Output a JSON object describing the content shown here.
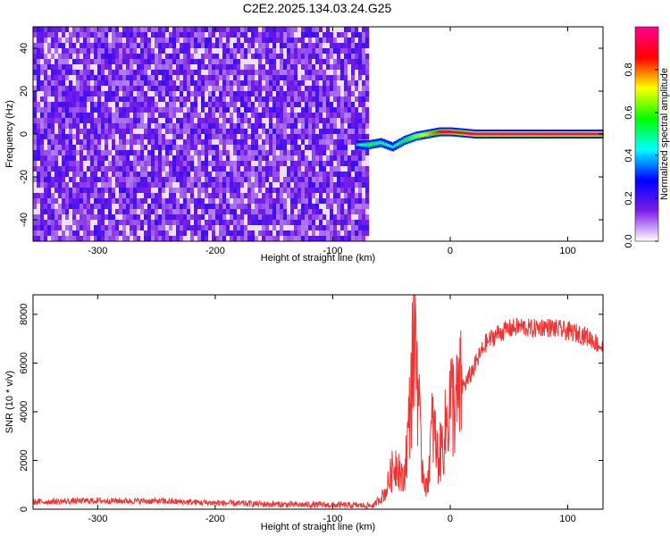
{
  "title": "C2E2.2025.134.03.24.G25",
  "chart_data": [
    {
      "type": "heatmap",
      "xlabel": "Height of straight line (km)",
      "ylabel": "Frequency (Hz)",
      "xlim": [
        -355,
        130
      ],
      "ylim": [
        -50,
        50
      ],
      "xticks": [
        -300,
        -200,
        -100,
        0,
        100
      ],
      "yticks": [
        -40,
        -20,
        0,
        20,
        40
      ],
      "colorbar": {
        "label": "Normalized spectral amplitude",
        "range": [
          0,
          1
        ],
        "ticks": [
          0.0,
          0.2,
          0.4,
          0.6,
          0.8
        ],
        "colors": [
          "#ffffff",
          "#7a1ee6",
          "#0000ff",
          "#00ffff",
          "#00ff00",
          "#ffff00",
          "#ff0000",
          "#ff0090"
        ]
      },
      "noise_region": {
        "x": [
          -355,
          -72
        ],
        "y": [
          -50,
          50
        ],
        "amplitude_range": [
          0.0,
          0.3
        ]
      },
      "carrier_ridge": [
        {
          "x": -80,
          "freq": -5,
          "amp": 0.4
        },
        {
          "x": -70,
          "freq": -5,
          "amp": 0.55
        },
        {
          "x": -60,
          "freq": -4,
          "amp": 0.5
        },
        {
          "x": -50,
          "freq": -6,
          "amp": 0.45
        },
        {
          "x": -40,
          "freq": -3,
          "amp": 0.55
        },
        {
          "x": -30,
          "freq": -1,
          "amp": 0.65
        },
        {
          "x": -20,
          "freq": 0,
          "amp": 0.75
        },
        {
          "x": -10,
          "freq": 1,
          "amp": 0.85
        },
        {
          "x": 0,
          "freq": 1,
          "amp": 0.9
        },
        {
          "x": 20,
          "freq": 0,
          "amp": 0.95
        },
        {
          "x": 60,
          "freq": 0,
          "amp": 0.95
        },
        {
          "x": 100,
          "freq": 0,
          "amp": 0.95
        },
        {
          "x": 130,
          "freq": 0,
          "amp": 0.95
        }
      ]
    },
    {
      "type": "line",
      "xlabel": "Height of straight line (km)",
      "ylabel": "SNR (10 * v/v)",
      "xlim": [
        -355,
        130
      ],
      "ylim": [
        0,
        8800
      ],
      "xticks": [
        -300,
        -200,
        -100,
        0,
        100
      ],
      "yticks": [
        0,
        2000,
        4000,
        6000,
        8000
      ],
      "series": [
        {
          "color": "#ee3333",
          "x": [
            -355,
            -300,
            -250,
            -200,
            -150,
            -100,
            -65,
            -55,
            -50,
            -45,
            -40,
            -35,
            -30,
            -25,
            -20,
            -15,
            -10,
            -5,
            0,
            5,
            10,
            15,
            20,
            25,
            30,
            40,
            50,
            60,
            70,
            80,
            90,
            100,
            110,
            120,
            130
          ],
          "values": [
            300,
            350,
            330,
            260,
            200,
            170,
            150,
            700,
            1500,
            2000,
            1000,
            3500,
            8300,
            2200,
            800,
            3500,
            2000,
            3000,
            4500,
            4200,
            5000,
            5300,
            5800,
            6300,
            6800,
            7200,
            7400,
            7500,
            7400,
            7500,
            7400,
            7300,
            7200,
            7000,
            6600
          ]
        }
      ]
    }
  ]
}
